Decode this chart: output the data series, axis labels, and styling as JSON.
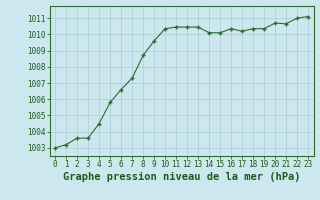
{
  "x": [
    0,
    1,
    2,
    3,
    4,
    5,
    6,
    7,
    8,
    9,
    10,
    11,
    12,
    13,
    14,
    15,
    16,
    17,
    18,
    19,
    20,
    21,
    22,
    23
  ],
  "y": [
    1003.0,
    1003.2,
    1003.6,
    1003.6,
    1004.5,
    1005.8,
    1006.6,
    1007.3,
    1008.7,
    1009.6,
    1010.35,
    1010.45,
    1010.45,
    1010.45,
    1010.1,
    1010.1,
    1010.35,
    1010.2,
    1010.35,
    1010.35,
    1010.7,
    1010.65,
    1011.0,
    1011.1
  ],
  "line_color": "#2d6a2d",
  "marker_color": "#2d6a2d",
  "bg_color": "#cce8ee",
  "grid_color": "#aaccd8",
  "title": "Graphe pression niveau de la mer (hPa)",
  "title_color": "#1a5c1a",
  "ylim_min": 1002.5,
  "ylim_max": 1011.75,
  "yticks": [
    1003,
    1004,
    1005,
    1006,
    1007,
    1008,
    1009,
    1010,
    1011
  ],
  "xticks": [
    0,
    1,
    2,
    3,
    4,
    5,
    6,
    7,
    8,
    9,
    10,
    11,
    12,
    13,
    14,
    15,
    16,
    17,
    18,
    19,
    20,
    21,
    22,
    23
  ],
  "tick_fontsize": 5.5,
  "title_fontsize": 7.5
}
